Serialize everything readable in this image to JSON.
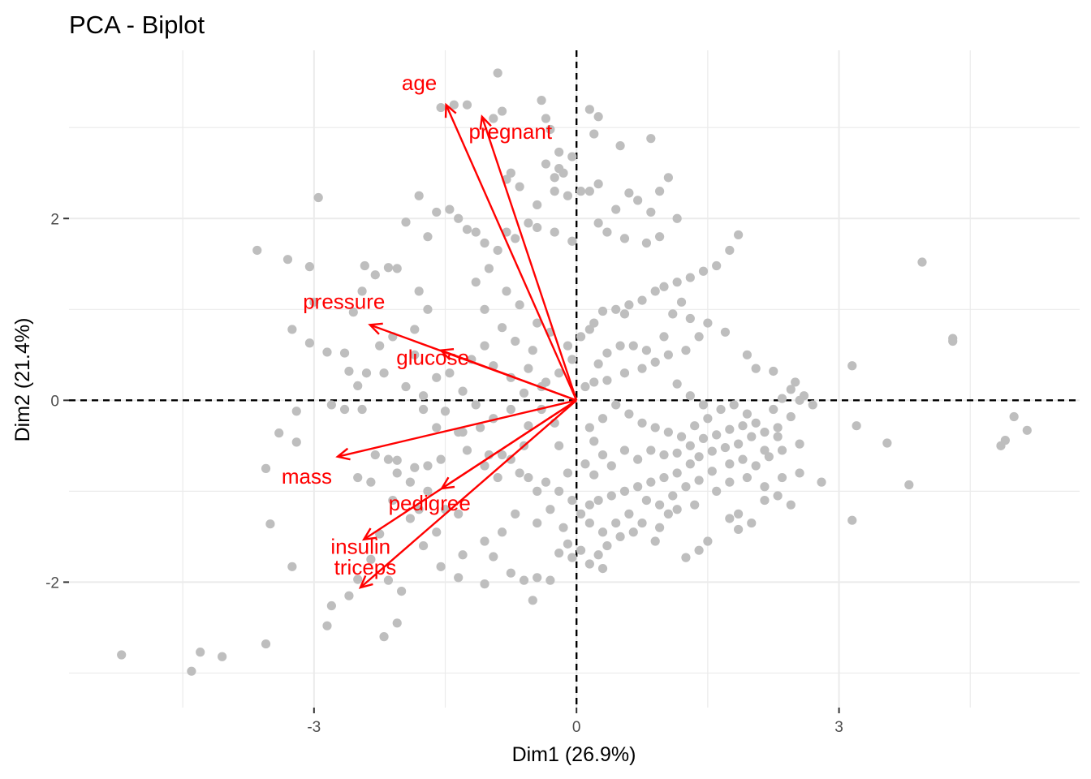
{
  "chart_data": {
    "type": "scatter",
    "title": "PCA - Biplot",
    "xlabel": "Dim1 (26.9%)",
    "ylabel": "Dim2 (21.4%)",
    "xlim": [
      -5.8,
      5.75
    ],
    "ylim": [
      -3.38,
      3.85
    ],
    "x_ticks": [
      -3,
      0,
      3
    ],
    "y_ticks": [
      -2,
      0,
      2
    ],
    "grid": true,
    "reference_lines": {
      "x": 0,
      "y": 0,
      "style": "dashed"
    },
    "point_color": "#bebebe",
    "variable_color": "#ff0000",
    "variables": [
      {
        "name": "age",
        "x": -1.49,
        "y": 3.25
      },
      {
        "name": "pregnant",
        "x": -1.08,
        "y": 3.12
      },
      {
        "name": "pressure",
        "x": -2.36,
        "y": 0.83
      },
      {
        "name": "glucose",
        "x": -1.55,
        "y": 0.55
      },
      {
        "name": "mass",
        "x": -2.73,
        "y": -0.62
      },
      {
        "name": "pedigree",
        "x": -1.54,
        "y": -0.97
      },
      {
        "name": "insulin",
        "x": -2.43,
        "y": -1.53
      },
      {
        "name": "triceps",
        "x": -2.47,
        "y": -2.06
      }
    ],
    "points": [
      [
        -5.2,
        -2.8
      ],
      [
        -4.4,
        -2.98
      ],
      [
        -4.3,
        -2.77
      ],
      [
        -4.05,
        -2.82
      ],
      [
        -3.55,
        -2.68
      ],
      [
        -2.85,
        -2.48
      ],
      [
        -2.8,
        -2.26
      ],
      [
        -2.6,
        -2.15
      ],
      [
        -2.2,
        -2.6
      ],
      [
        -2.05,
        -2.45
      ],
      [
        -3.65,
        1.65
      ],
      [
        -3.3,
        1.55
      ],
      [
        -3.05,
        1.47
      ],
      [
        -2.95,
        2.23
      ],
      [
        -3.0,
        1.08
      ],
      [
        -3.25,
        0.78
      ],
      [
        -3.05,
        0.63
      ],
      [
        -2.85,
        0.53
      ],
      [
        -2.65,
        0.52
      ],
      [
        -2.55,
        0.97
      ],
      [
        -2.45,
        1.2
      ],
      [
        -2.42,
        1.48
      ],
      [
        -2.3,
        1.38
      ],
      [
        -2.15,
        1.46
      ],
      [
        -2.05,
        1.45
      ],
      [
        -1.95,
        1.96
      ],
      [
        -1.8,
        1.2
      ],
      [
        -1.7,
        1.0
      ],
      [
        -1.85,
        0.78
      ],
      [
        -2.1,
        0.7
      ],
      [
        -2.25,
        0.6
      ],
      [
        -2.2,
        0.3
      ],
      [
        -2.4,
        0.3
      ],
      [
        -2.6,
        0.32
      ],
      [
        -2.8,
        -0.05
      ],
      [
        -3.2,
        -0.12
      ],
      [
        -3.4,
        -0.36
      ],
      [
        -3.2,
        -0.46
      ],
      [
        -3.55,
        -0.75
      ],
      [
        -3.5,
        -1.36
      ],
      [
        -3.25,
        -1.83
      ],
      [
        -2.5,
        -0.85
      ],
      [
        -2.3,
        -0.6
      ],
      [
        -2.35,
        -0.9
      ],
      [
        -2.15,
        -0.65
      ],
      [
        -2.05,
        -0.66
      ],
      [
        -1.85,
        -0.74
      ],
      [
        -1.7,
        -0.72
      ],
      [
        -1.55,
        -0.65
      ],
      [
        -2.65,
        -0.1
      ],
      [
        -2.5,
        0.16
      ],
      [
        -2.45,
        -0.1
      ],
      [
        -1.75,
        -0.1
      ],
      [
        -1.5,
        -0.12
      ],
      [
        -1.6,
        -0.3
      ],
      [
        -1.3,
        -0.35
      ],
      [
        -1.1,
        -0.3
      ],
      [
        -1.0,
        -0.6
      ],
      [
        -1.8,
        -1.2
      ],
      [
        -1.5,
        -1.2
      ],
      [
        -1.6,
        -1.45
      ],
      [
        -1.75,
        -1.6
      ],
      [
        -1.55,
        -1.83
      ],
      [
        -2.25,
        -1.47
      ],
      [
        -2.35,
        -1.75
      ],
      [
        -2.15,
        -1.98
      ],
      [
        -2.5,
        -1.97
      ],
      [
        -2.0,
        -2.1
      ],
      [
        -1.3,
        -1.7
      ],
      [
        -1.35,
        -1.95
      ],
      [
        -1.05,
        -2.02
      ],
      [
        -0.95,
        -1.72
      ],
      [
        -0.75,
        -1.9
      ],
      [
        -0.6,
        -1.98
      ],
      [
        -0.5,
        -2.2
      ],
      [
        -0.45,
        -1.95
      ],
      [
        -0.3,
        -1.98
      ],
      [
        -0.2,
        -1.68
      ],
      [
        -0.1,
        -1.58
      ],
      [
        -0.05,
        -1.73
      ],
      [
        0.05,
        -1.65
      ],
      [
        0.15,
        -1.8
      ],
      [
        0.25,
        -1.7
      ],
      [
        0.3,
        -1.85
      ],
      [
        -1.8,
        2.25
      ],
      [
        -1.7,
        1.8
      ],
      [
        -1.6,
        2.07
      ],
      [
        -1.45,
        2.1
      ],
      [
        -1.35,
        2.0
      ],
      [
        -1.25,
        1.88
      ],
      [
        -1.15,
        1.85
      ],
      [
        -1.05,
        1.73
      ],
      [
        -0.9,
        1.65
      ],
      [
        -0.8,
        1.85
      ],
      [
        -0.7,
        1.78
      ],
      [
        -0.55,
        1.95
      ],
      [
        -0.45,
        2.15
      ],
      [
        -0.25,
        2.3
      ],
      [
        -0.15,
        2.5
      ],
      [
        0.05,
        2.3
      ],
      [
        0.15,
        2.3
      ],
      [
        0.25,
        2.38
      ],
      [
        0.45,
        2.1
      ],
      [
        0.6,
        2.28
      ],
      [
        0.7,
        2.2
      ],
      [
        0.85,
        2.07
      ],
      [
        0.95,
        2.3
      ],
      [
        1.05,
        2.45
      ],
      [
        1.15,
        2.0
      ],
      [
        -0.9,
        3.6
      ],
      [
        -1.4,
        3.25
      ],
      [
        -1.55,
        3.22
      ],
      [
        -1.25,
        3.25
      ],
      [
        -0.85,
        3.18
      ],
      [
        -0.95,
        3.1
      ],
      [
        -0.4,
        3.3
      ],
      [
        -0.35,
        3.1
      ],
      [
        -0.3,
        2.98
      ],
      [
        -0.2,
        2.73
      ],
      [
        -0.05,
        2.68
      ],
      [
        0.15,
        3.2
      ],
      [
        0.25,
        3.12
      ],
      [
        0.2,
        2.93
      ],
      [
        0.5,
        2.8
      ],
      [
        0.85,
        2.88
      ],
      [
        -0.35,
        2.6
      ],
      [
        -0.2,
        2.55
      ],
      [
        -0.75,
        2.5
      ],
      [
        -0.8,
        2.43
      ],
      [
        -0.65,
        2.35
      ],
      [
        -0.25,
        2.45
      ],
      [
        -0.1,
        2.25
      ],
      [
        -0.45,
        1.9
      ],
      [
        -0.25,
        1.85
      ],
      [
        -0.05,
        1.75
      ],
      [
        0.25,
        1.95
      ],
      [
        0.35,
        1.85
      ],
      [
        0.55,
        1.78
      ],
      [
        0.8,
        1.73
      ],
      [
        0.95,
        1.8
      ],
      [
        1.85,
        1.82
      ],
      [
        1.75,
        1.65
      ],
      [
        1.6,
        1.48
      ],
      [
        1.45,
        1.42
      ],
      [
        1.3,
        1.35
      ],
      [
        1.15,
        1.3
      ],
      [
        1.0,
        1.25
      ],
      [
        0.9,
        1.2
      ],
      [
        0.75,
        1.1
      ],
      [
        0.6,
        1.05
      ],
      [
        0.45,
        1.0
      ],
      [
        0.3,
        0.98
      ],
      [
        0.2,
        0.85
      ],
      [
        0.15,
        0.78
      ],
      [
        0.05,
        0.7
      ],
      [
        1.2,
        1.08
      ],
      [
        1.1,
        0.95
      ],
      [
        1.3,
        0.9
      ],
      [
        1.5,
        0.85
      ],
      [
        1.7,
        0.75
      ],
      [
        1.4,
        0.7
      ],
      [
        1.25,
        0.55
      ],
      [
        1.05,
        0.5
      ],
      [
        0.9,
        0.42
      ],
      [
        0.75,
        0.35
      ],
      [
        0.55,
        0.3
      ],
      [
        0.35,
        0.22
      ],
      [
        0.2,
        0.2
      ],
      [
        0.1,
        0.15
      ],
      [
        1.95,
        0.5
      ],
      [
        2.05,
        0.35
      ],
      [
        2.25,
        0.32
      ],
      [
        2.5,
        0.2
      ],
      [
        2.35,
        0.02
      ],
      [
        2.55,
        0.0
      ],
      [
        2.7,
        -0.05
      ],
      [
        2.45,
        -0.18
      ],
      [
        2.3,
        -0.3
      ],
      [
        2.15,
        -0.35
      ],
      [
        2.0,
        -0.4
      ],
      [
        1.85,
        -0.48
      ],
      [
        1.7,
        -0.52
      ],
      [
        1.55,
        -0.56
      ],
      [
        1.4,
        -0.62
      ],
      [
        1.3,
        -0.7
      ],
      [
        1.15,
        -0.8
      ],
      [
        1.0,
        -0.85
      ],
      [
        0.85,
        -0.9
      ],
      [
        0.7,
        -0.95
      ],
      [
        0.55,
        -1.0
      ],
      [
        0.4,
        -1.05
      ],
      [
        0.25,
        -1.1
      ],
      [
        0.15,
        -1.15
      ],
      [
        0.05,
        -1.25
      ],
      [
        0.6,
        -1.25
      ],
      [
        0.75,
        -1.35
      ],
      [
        0.95,
        -1.4
      ],
      [
        1.15,
        -1.2
      ],
      [
        1.35,
        -1.15
      ],
      [
        1.6,
        -1.0
      ],
      [
        1.75,
        -0.9
      ],
      [
        1.95,
        -0.85
      ],
      [
        2.15,
        -0.95
      ],
      [
        2.3,
        -1.05
      ],
      [
        2.45,
        -1.15
      ],
      [
        2.55,
        -0.8
      ],
      [
        2.35,
        -0.55
      ],
      [
        2.15,
        -0.55
      ],
      [
        1.85,
        -1.25
      ],
      [
        1.75,
        -1.3
      ],
      [
        1.5,
        -1.55
      ],
      [
        1.4,
        -1.65
      ],
      [
        1.25,
        -1.73
      ],
      [
        0.9,
        -1.55
      ],
      [
        0.35,
        -1.6
      ],
      [
        0.45,
        -1.35
      ],
      [
        0.2,
        -0.45
      ],
      [
        0.15,
        -0.3
      ],
      [
        0.3,
        -0.2
      ],
      [
        0.45,
        -0.05
      ],
      [
        0.6,
        -0.15
      ],
      [
        0.75,
        -0.25
      ],
      [
        0.9,
        -0.3
      ],
      [
        1.05,
        -0.35
      ],
      [
        1.2,
        -0.4
      ],
      [
        1.35,
        -0.28
      ],
      [
        1.5,
        -0.2
      ],
      [
        1.65,
        -0.1
      ],
      [
        1.8,
        -0.05
      ],
      [
        1.95,
        -0.15
      ],
      [
        2.05,
        -0.25
      ],
      [
        2.25,
        -0.1
      ],
      [
        2.45,
        0.12
      ],
      [
        2.6,
        0.05
      ],
      [
        2.8,
        -0.9
      ],
      [
        2.55,
        -0.48
      ],
      [
        2.35,
        -0.85
      ],
      [
        2.15,
        -1.1
      ],
      [
        2.0,
        -1.35
      ],
      [
        1.85,
        -1.42
      ],
      [
        -0.4,
        -0.1
      ],
      [
        -0.55,
        -0.28
      ],
      [
        -0.6,
        -0.5
      ],
      [
        -0.75,
        -0.65
      ],
      [
        -0.9,
        -0.85
      ],
      [
        -0.55,
        -0.85
      ],
      [
        -0.35,
        -0.9
      ],
      [
        -0.2,
        -1.0
      ],
      [
        -0.3,
        -1.2
      ],
      [
        -0.45,
        -1.35
      ],
      [
        -0.7,
        -1.25
      ],
      [
        -0.85,
        -1.45
      ],
      [
        -1.05,
        -1.55
      ],
      [
        -0.15,
        -1.4
      ],
      [
        -0.05,
        -1.1
      ],
      [
        -0.1,
        -0.8
      ],
      [
        -0.2,
        -0.5
      ],
      [
        -0.25,
        -0.25
      ],
      [
        -0.35,
        0.2
      ],
      [
        -0.55,
        0.35
      ],
      [
        -0.5,
        0.55
      ],
      [
        -0.7,
        0.65
      ],
      [
        -0.85,
        0.8
      ],
      [
        -1.05,
        1.0
      ],
      [
        -1.15,
        1.3
      ],
      [
        -1.0,
        1.45
      ],
      [
        -0.8,
        1.2
      ],
      [
        -0.65,
        1.05
      ],
      [
        -0.45,
        0.85
      ],
      [
        -0.3,
        0.75
      ],
      [
        -0.1,
        0.6
      ],
      [
        -0.05,
        0.45
      ],
      [
        -0.2,
        0.3
      ],
      [
        -0.4,
        0.15
      ],
      [
        -0.6,
        0.08
      ],
      [
        -0.75,
        -0.1
      ],
      [
        -0.95,
        -0.2
      ],
      [
        -1.15,
        -0.05
      ],
      [
        -1.3,
        0.1
      ],
      [
        -1.45,
        0.3
      ],
      [
        -1.2,
        0.45
      ],
      [
        -1.05,
        0.6
      ],
      [
        -0.95,
        0.38
      ],
      [
        -0.75,
        0.25
      ],
      [
        -1.6,
        0.25
      ],
      [
        -1.85,
        0.5
      ],
      [
        -1.95,
        0.15
      ],
      [
        -1.75,
        0.05
      ],
      [
        -1.35,
        -0.35
      ],
      [
        -1.25,
        -0.55
      ],
      [
        -1.05,
        -0.72
      ],
      [
        -0.85,
        -0.6
      ],
      [
        -0.65,
        -0.8
      ],
      [
        -0.45,
        -1.0
      ],
      [
        -1.35,
        -1.25
      ],
      [
        -1.7,
        -1.0
      ],
      [
        -1.9,
        -0.9
      ],
      [
        -2.05,
        -0.8
      ],
      [
        -1.9,
        -1.3
      ],
      [
        -2.1,
        -1.1
      ],
      [
        0.55,
        0.95
      ],
      [
        0.65,
        0.6
      ],
      [
        0.8,
        0.55
      ],
      [
        1.0,
        0.7
      ],
      [
        1.15,
        0.18
      ],
      [
        1.3,
        0.05
      ],
      [
        1.45,
        -0.05
      ],
      [
        0.25,
        0.4
      ],
      [
        0.35,
        0.52
      ],
      [
        0.5,
        0.6
      ],
      [
        0.1,
        -0.7
      ],
      [
        0.2,
        -0.82
      ],
      [
        0.3,
        -0.6
      ],
      [
        0.4,
        -0.72
      ],
      [
        0.55,
        -0.55
      ],
      [
        0.7,
        -0.65
      ],
      [
        0.85,
        -0.55
      ],
      [
        1.0,
        -0.6
      ],
      [
        1.15,
        -0.58
      ],
      [
        1.3,
        -0.5
      ],
      [
        1.45,
        -0.42
      ],
      [
        1.6,
        -0.38
      ],
      [
        1.75,
        -0.32
      ],
      [
        1.9,
        -0.28
      ],
      [
        0.8,
        -1.1
      ],
      [
        0.95,
        -1.15
      ],
      [
        1.1,
        -1.05
      ],
      [
        1.25,
        -0.95
      ],
      [
        1.4,
        -0.88
      ],
      [
        1.55,
        -0.78
      ],
      [
        0.65,
        -1.45
      ],
      [
        0.5,
        -1.5
      ],
      [
        0.3,
        -1.45
      ],
      [
        0.15,
        -1.35
      ],
      [
        1.75,
        -0.7
      ],
      [
        1.9,
        -0.65
      ],
      [
        2.05,
        -0.72
      ],
      [
        2.2,
        -0.62
      ],
      [
        2.3,
        -0.4
      ],
      [
        1.05,
        -1.25
      ],
      [
        3.15,
        0.38
      ],
      [
        3.2,
        -0.28
      ],
      [
        3.55,
        -0.47
      ],
      [
        3.8,
        -0.93
      ],
      [
        3.15,
        -1.32
      ],
      [
        3.95,
        1.52
      ],
      [
        4.3,
        0.68
      ],
      [
        4.3,
        0.65
      ],
      [
        4.85,
        -0.5
      ],
      [
        4.9,
        -0.44
      ],
      [
        5.0,
        -0.18
      ],
      [
        5.15,
        -0.33
      ]
    ]
  }
}
